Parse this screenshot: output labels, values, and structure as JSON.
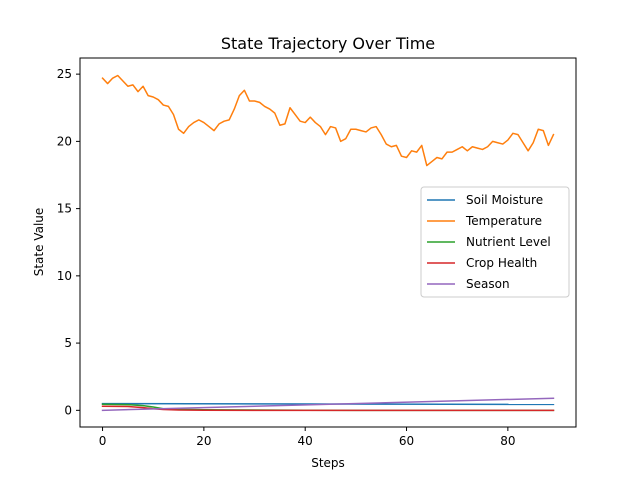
{
  "chart_data": {
    "type": "line",
    "title": "State Trajectory Over Time",
    "xlabel": "Steps",
    "ylabel": "State Value",
    "xlim": [
      -4.45,
      93.45
    ],
    "ylim": [
      -1.24,
      26.2
    ],
    "xticks": [
      0,
      20,
      40,
      60,
      80
    ],
    "yticks": [
      0,
      5,
      10,
      15,
      20,
      25
    ],
    "grid": false,
    "legend_position": "center-right",
    "series": [
      {
        "name": "Soil Moisture",
        "color": "#1f77b4",
        "x": [
          0,
          89
        ],
        "values": [
          0.5,
          0.44
        ]
      },
      {
        "name": "Temperature",
        "color": "#ff7f0e",
        "x": [
          0,
          1,
          2,
          3,
          4,
          5,
          6,
          7,
          8,
          9,
          10,
          11,
          12,
          13,
          14,
          15,
          16,
          17,
          18,
          19,
          20,
          21,
          22,
          23,
          24,
          25,
          26,
          27,
          28,
          29,
          30,
          31,
          32,
          33,
          34,
          35,
          36,
          37,
          38,
          39,
          40,
          41,
          42,
          43,
          44,
          45,
          46,
          47,
          48,
          49,
          50,
          51,
          52,
          53,
          54,
          55,
          56,
          57,
          58,
          59,
          60,
          61,
          62,
          63,
          64,
          65,
          66,
          67,
          68,
          69,
          70,
          71,
          72,
          73,
          74,
          75,
          76,
          77,
          78,
          79,
          80,
          81,
          82,
          83,
          84,
          85,
          86,
          87,
          88,
          89
        ],
        "values": [
          24.7,
          24.3,
          24.7,
          24.9,
          24.5,
          24.1,
          24.2,
          23.7,
          24.1,
          23.4,
          23.3,
          23.1,
          22.7,
          22.6,
          22.0,
          20.9,
          20.6,
          21.1,
          21.4,
          21.6,
          21.4,
          21.1,
          20.8,
          21.3,
          21.5,
          21.6,
          22.4,
          23.4,
          23.8,
          23.0,
          23.0,
          22.9,
          22.6,
          22.4,
          22.1,
          21.2,
          21.3,
          22.5,
          22.0,
          21.5,
          21.4,
          21.8,
          21.4,
          21.1,
          20.5,
          21.1,
          21.0,
          20.0,
          20.2,
          20.9,
          20.9,
          20.8,
          20.7,
          21.0,
          21.1,
          20.5,
          19.8,
          19.6,
          19.7,
          18.9,
          18.8,
          19.3,
          19.2,
          19.7,
          18.2,
          18.5,
          18.8,
          18.7,
          19.2,
          19.2,
          19.4,
          19.6,
          19.3,
          19.6,
          19.5,
          19.4,
          19.6,
          20.0,
          19.9,
          19.8,
          20.1,
          20.6,
          20.5,
          19.9,
          19.3,
          19.9,
          20.9,
          20.8,
          19.7,
          20.5
        ]
      },
      {
        "name": "Nutrient Level",
        "color": "#2ca02c",
        "x": [
          0,
          5,
          8,
          10,
          12,
          15,
          20,
          30,
          40,
          50,
          60,
          70,
          80,
          89
        ],
        "values": [
          0.45,
          0.42,
          0.35,
          0.25,
          0.12,
          0.08,
          0.04,
          0.02,
          0.01,
          0.0,
          0.0,
          0.0,
          0.0,
          0.0
        ]
      },
      {
        "name": "Crop Health",
        "color": "#d62728",
        "x": [
          0,
          5,
          8,
          10,
          12,
          15,
          20,
          30,
          40,
          50,
          60,
          70,
          80,
          89
        ],
        "values": [
          0.3,
          0.28,
          0.2,
          0.12,
          0.06,
          0.02,
          0.01,
          0.0,
          0.0,
          0.0,
          0.0,
          0.0,
          0.0,
          0.0
        ]
      },
      {
        "name": "Season",
        "color": "#9467bd",
        "x": [
          0,
          89
        ],
        "values": [
          0.0,
          0.9
        ]
      }
    ]
  }
}
